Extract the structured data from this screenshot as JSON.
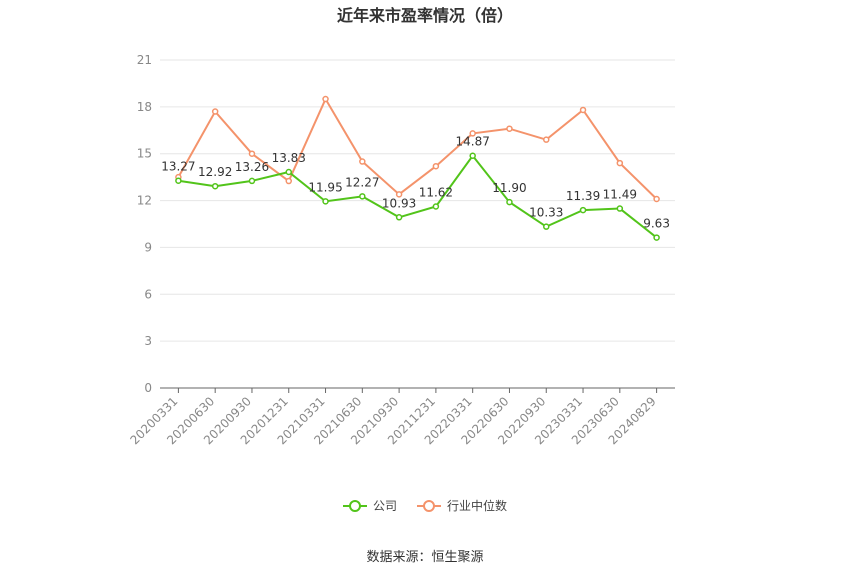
{
  "chart_data": {
    "type": "line",
    "title": "近年来市盈率情况（倍）",
    "categories": [
      "20200331",
      "20200630",
      "20200930",
      "20201231",
      "20210331",
      "20210630",
      "20210930",
      "20211231",
      "20220331",
      "20220630",
      "20220930",
      "20230331",
      "20230630",
      "20240829"
    ],
    "series": [
      {
        "name": "公司",
        "color": "#52c41a",
        "values": [
          13.27,
          12.92,
          13.26,
          13.83,
          11.95,
          12.27,
          10.93,
          11.62,
          14.87,
          11.9,
          10.33,
          11.39,
          11.49,
          9.63
        ],
        "labels": [
          "13.27",
          "12.92",
          "13.26",
          "13.83",
          "11.95",
          "12.27",
          "10.93",
          "11.62",
          "14.87",
          "11.90",
          "10.33",
          "11.39",
          "11.49",
          "9.63"
        ]
      },
      {
        "name": "行业中位数",
        "color": "#f4936b",
        "values": [
          13.5,
          17.7,
          15.0,
          13.25,
          18.5,
          14.5,
          12.4,
          14.2,
          16.3,
          16.6,
          15.9,
          17.8,
          14.4,
          12.1
        ]
      }
    ],
    "ylim": [
      0,
      21
    ],
    "yticks": [
      "0",
      "3",
      "6",
      "9",
      "12",
      "15",
      "18",
      "21"
    ],
    "grid": true,
    "legend_position": "bottom"
  },
  "source": "数据来源：恒生聚源"
}
